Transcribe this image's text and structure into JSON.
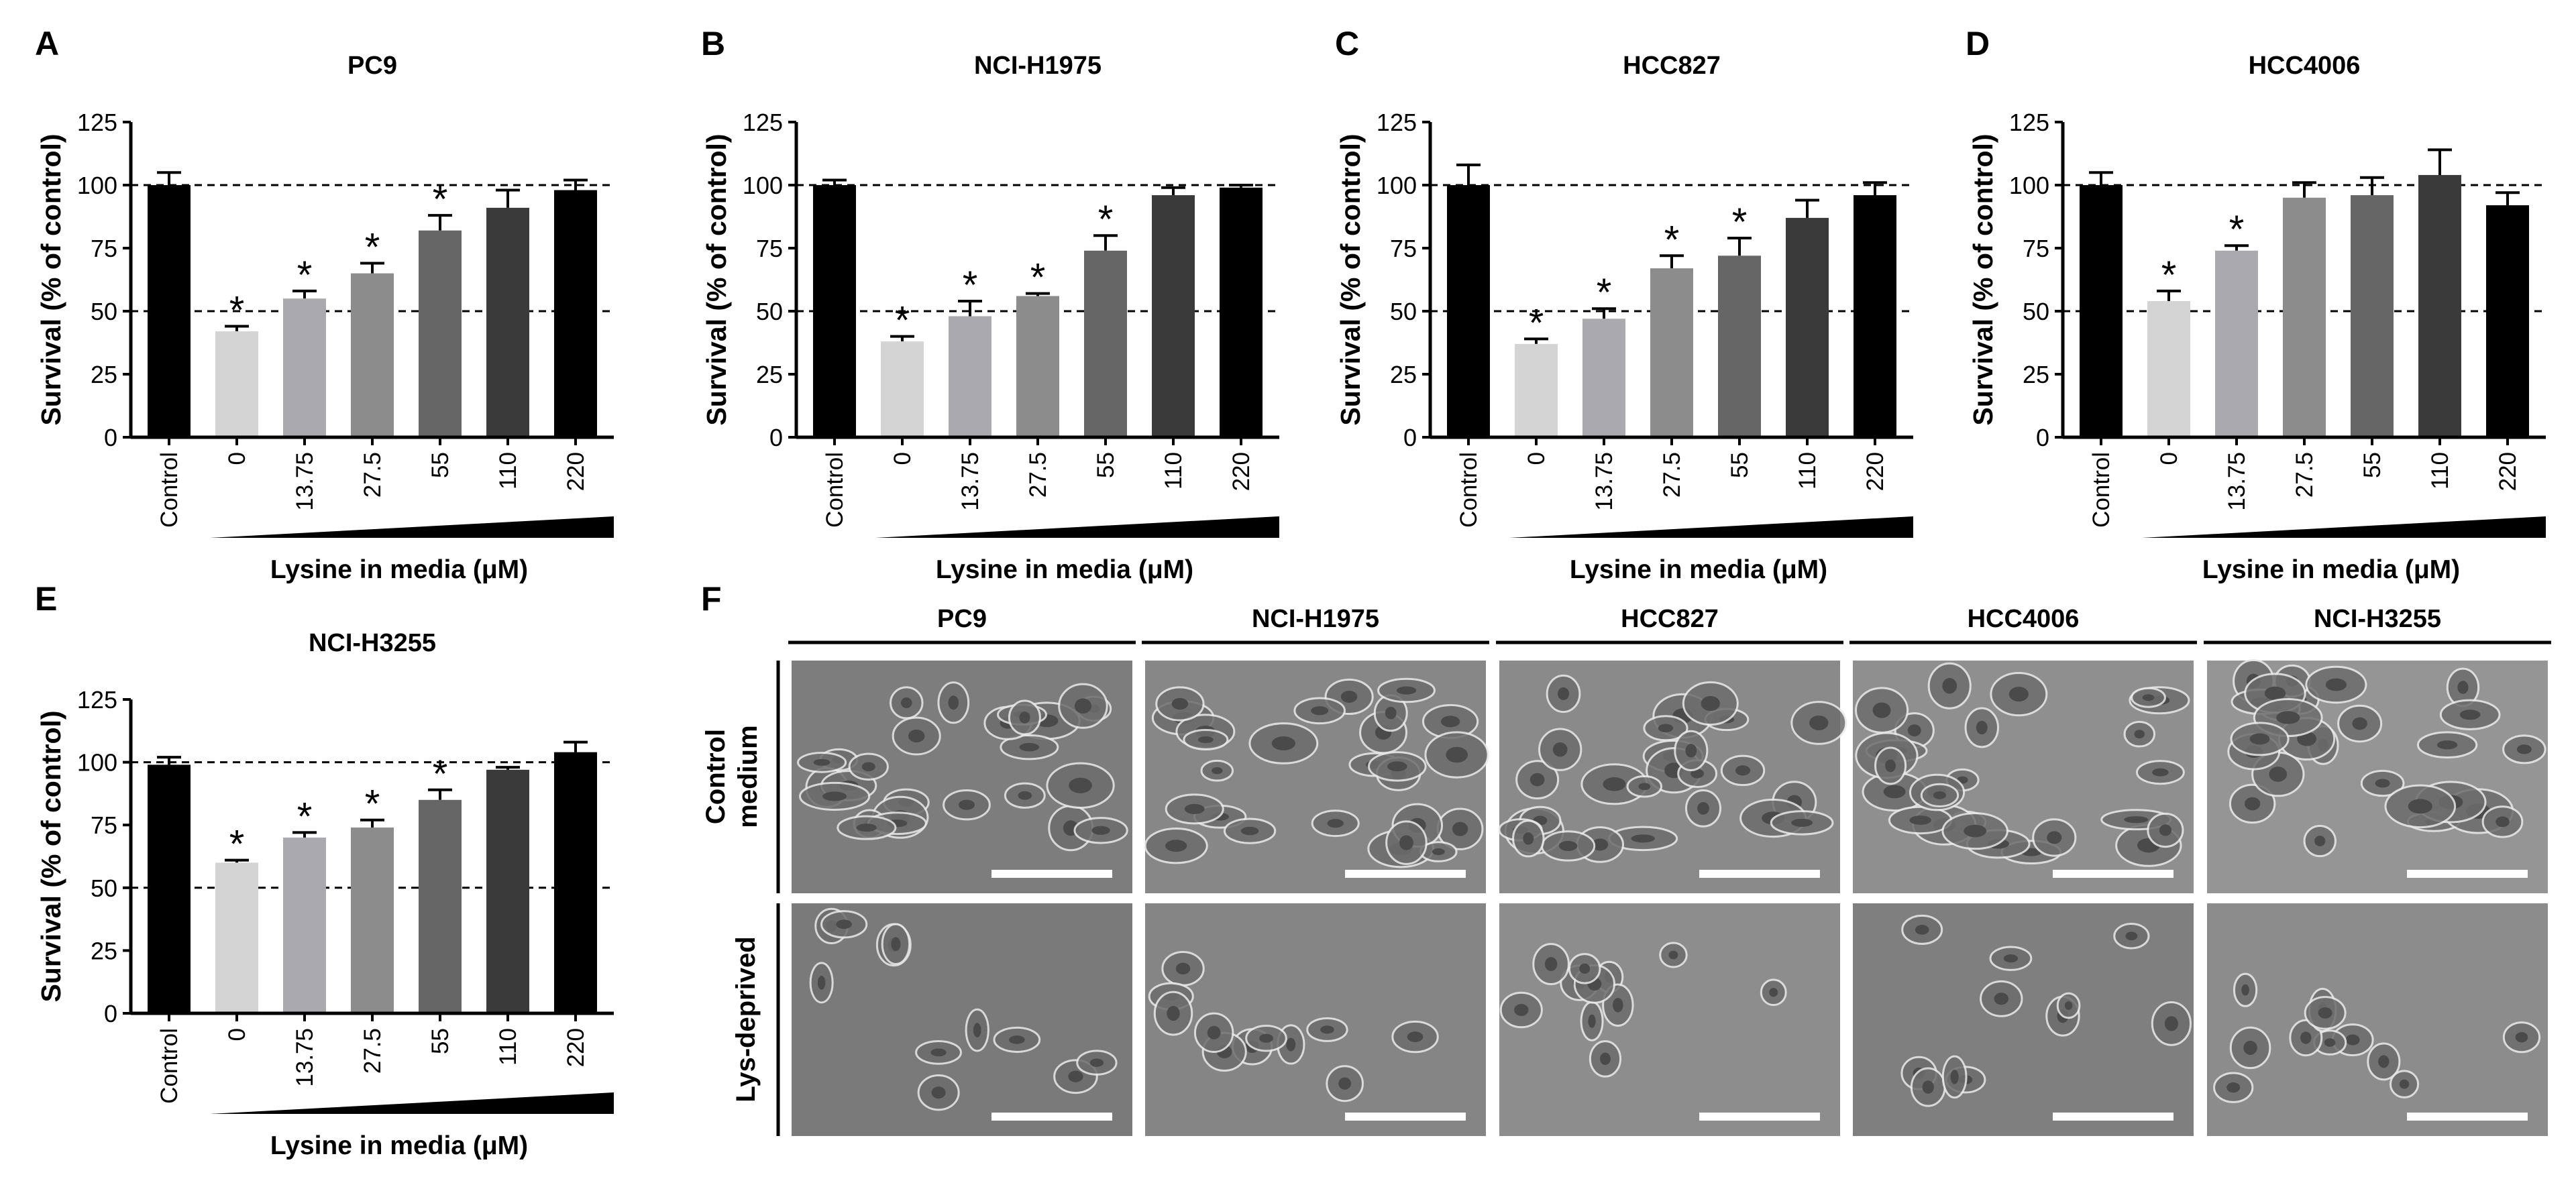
{
  "panel_letters": [
    "A",
    "B",
    "C",
    "D",
    "E",
    "F"
  ],
  "axis": {
    "ylabel": "Survival (% of control)",
    "xlabel": "Lysine in media (μM)",
    "yticks": [
      "0",
      "25",
      "50",
      "75",
      "100",
      "125"
    ]
  },
  "colors": {
    "bars": [
      "#000000",
      "#d4d4d4",
      "#a9a9af",
      "#8c8c8c",
      "#666666",
      "#3a3a3a",
      "#000000"
    ],
    "micro_control": [
      "#7d7d7d",
      "#878787",
      "#8a8a8a",
      "#8f8f8f",
      "#959595"
    ],
    "micro_deprived": [
      "#7a7a7a",
      "#858585",
      "#8d8d8d",
      "#7f7f7f",
      "#8c8c8c"
    ]
  },
  "chart_data": [
    {
      "panel": "A",
      "type": "bar",
      "title": "PC9",
      "categories": [
        "Control",
        "0",
        "13.75",
        "27.5",
        "55",
        "110",
        "220"
      ],
      "values": [
        100,
        42,
        55,
        65,
        82,
        91,
        98
      ],
      "errors": [
        5,
        2,
        3,
        4,
        6,
        7,
        4
      ],
      "significant": [
        false,
        true,
        true,
        true,
        true,
        false,
        false
      ],
      "ylim": [
        0,
        125
      ],
      "reference_lines": [
        50,
        100
      ],
      "xlabel": "Lysine in media (μM)",
      "ylabel": "Survival (% of control)"
    },
    {
      "panel": "B",
      "type": "bar",
      "title": "NCI-H1975",
      "categories": [
        "Control",
        "0",
        "13.75",
        "27.5",
        "55",
        "110",
        "220"
      ],
      "values": [
        100,
        38,
        48,
        56,
        74,
        96,
        99
      ],
      "errors": [
        2,
        2,
        6,
        1,
        6,
        3,
        1
      ],
      "significant": [
        false,
        true,
        true,
        true,
        true,
        false,
        false
      ],
      "ylim": [
        0,
        125
      ],
      "reference_lines": [
        50,
        100
      ],
      "xlabel": "Lysine in media (μM)",
      "ylabel": "Survival (% of control)"
    },
    {
      "panel": "C",
      "type": "bar",
      "title": "HCC827",
      "categories": [
        "Control",
        "0",
        "13.75",
        "27.5",
        "55",
        "110",
        "220"
      ],
      "values": [
        100,
        37,
        47,
        67,
        72,
        87,
        96
      ],
      "errors": [
        8,
        2,
        4,
        5,
        7,
        7,
        5
      ],
      "significant": [
        false,
        true,
        true,
        true,
        true,
        false,
        false
      ],
      "ylim": [
        0,
        125
      ],
      "reference_lines": [
        50,
        100
      ],
      "xlabel": "Lysine in media (μM)",
      "ylabel": "Survival (% of control)"
    },
    {
      "panel": "D",
      "type": "bar",
      "title": "HCC4006",
      "categories": [
        "Control",
        "0",
        "13.75",
        "27.5",
        "55",
        "110",
        "220"
      ],
      "values": [
        100,
        54,
        74,
        95,
        96,
        104,
        92
      ],
      "errors": [
        5,
        4,
        2,
        6,
        7,
        10,
        5
      ],
      "significant": [
        false,
        true,
        true,
        false,
        false,
        false,
        false
      ],
      "ylim": [
        0,
        125
      ],
      "reference_lines": [
        50,
        100
      ],
      "xlabel": "Lysine in media (μM)",
      "ylabel": "Survival (% of control)"
    },
    {
      "panel": "E",
      "type": "bar",
      "title": "NCI-H3255",
      "categories": [
        "Control",
        "0",
        "13.75",
        "27.5",
        "55",
        "110",
        "220"
      ],
      "values": [
        99,
        60,
        70,
        74,
        85,
        97,
        104
      ],
      "errors": [
        3,
        1,
        2,
        3,
        4,
        1,
        4
      ],
      "significant": [
        false,
        true,
        true,
        true,
        true,
        false,
        false
      ],
      "ylim": [
        0,
        125
      ],
      "reference_lines": [
        50,
        100
      ],
      "xlabel": "Lysine in media (μM)",
      "ylabel": "Survival (% of control)"
    }
  ],
  "significance_marker": "*",
  "micrographs": {
    "columns": [
      "PC9",
      "NCI-H1975",
      "HCC827",
      "HCC4006",
      "NCI-H3255"
    ],
    "rows": [
      {
        "label_lines": [
          "Control",
          "medium"
        ]
      },
      {
        "label_lines": [
          "Lys-deprived"
        ]
      }
    ]
  }
}
